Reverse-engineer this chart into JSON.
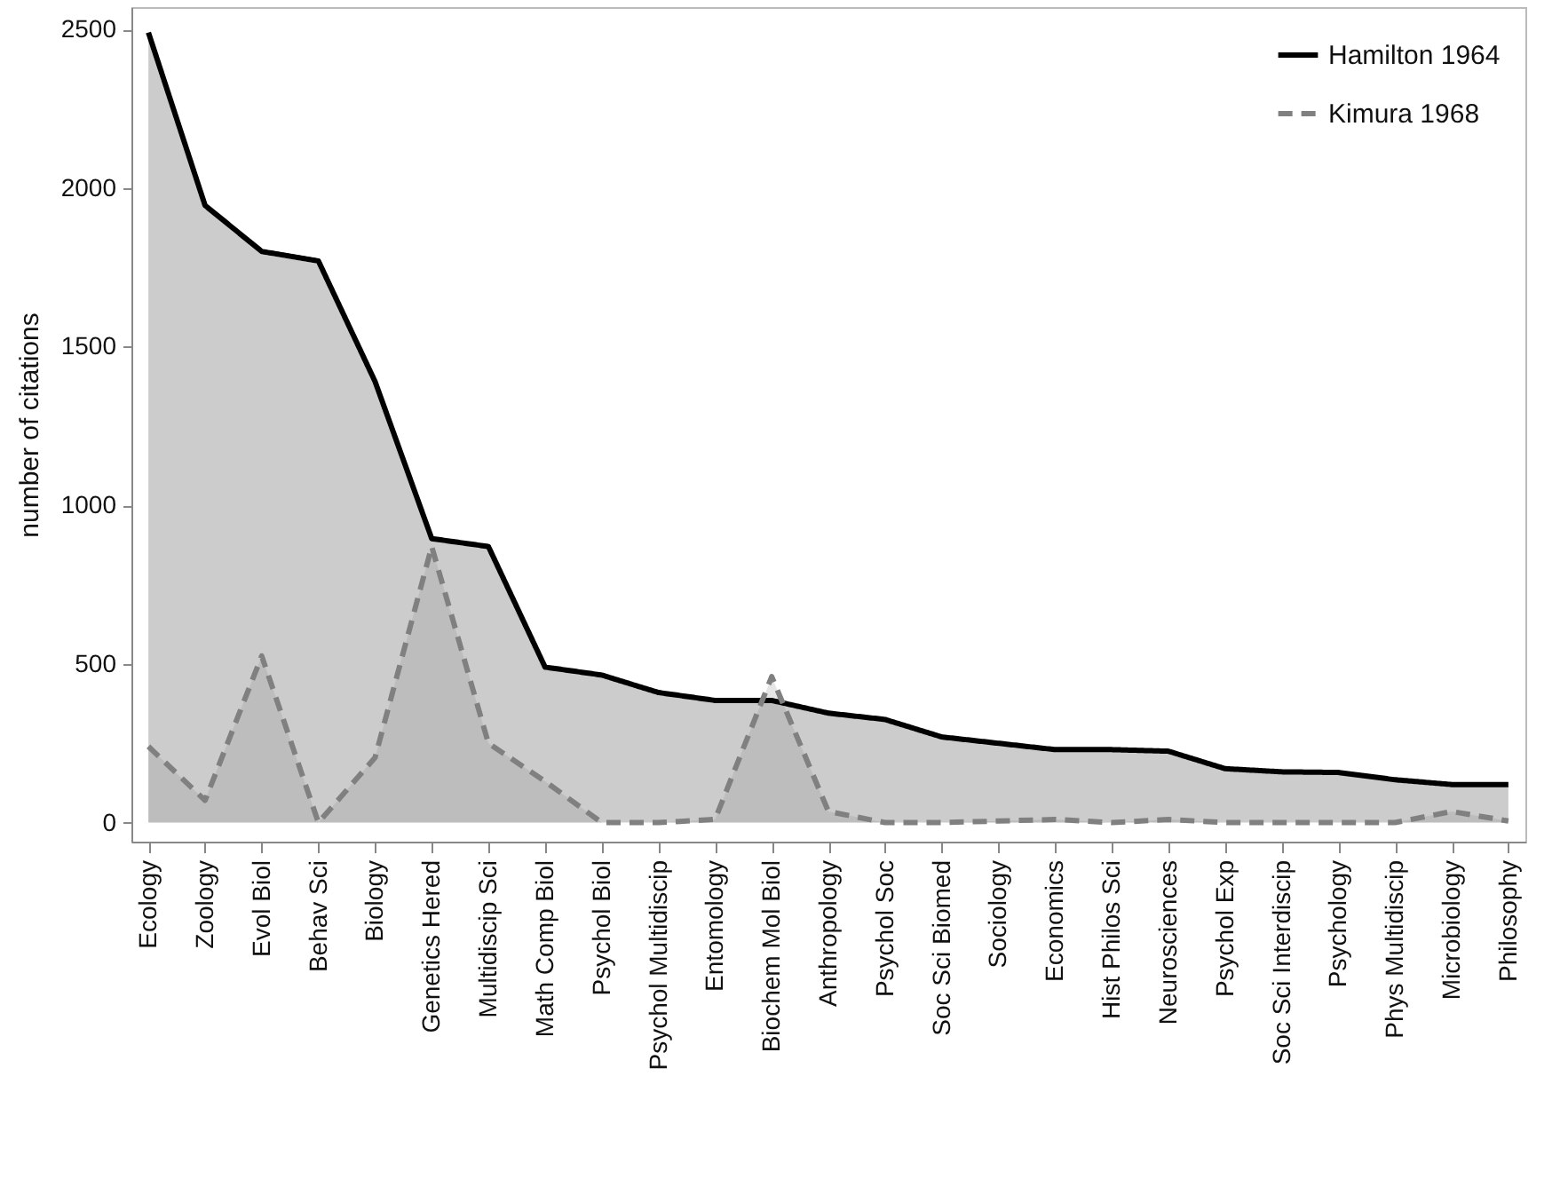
{
  "chart_data": {
    "type": "area",
    "ylabel": "number of citations",
    "categories": [
      "Ecology",
      "Zoology",
      "Evol Biol",
      "Behav Sci",
      "Biology",
      "Genetics Hered",
      "Multidiscip Sci",
      "Math Comp Biol",
      "Psychol Biol",
      "Psychol Multidiscip",
      "Entomology",
      "Biochem Mol Biol",
      "Anthropology",
      "Psychol Soc",
      "Soc Sci Biomed",
      "Sociology",
      "Economics",
      "Hist Philos Sci",
      "Neurosciences",
      "Psychol Exp",
      "Soc Sci Interdiscip",
      "Psychology",
      "Phys Multidiscip",
      "Microbiology",
      "Philosophy"
    ],
    "series": [
      {
        "name": "Hamilton 1964",
        "color": "#000000",
        "line_style": "solid",
        "values": [
          2490,
          1945,
          1800,
          1770,
          1390,
          895,
          870,
          490,
          465,
          410,
          385,
          385,
          345,
          325,
          270,
          250,
          230,
          230,
          225,
          170,
          160,
          158,
          135,
          120,
          120
        ]
      },
      {
        "name": "Kimura 1968",
        "color": "#808080",
        "line_style": "dashed",
        "values": [
          240,
          70,
          525,
          0,
          205,
          870,
          250,
          130,
          0,
          0,
          10,
          460,
          35,
          0,
          0,
          5,
          10,
          0,
          10,
          0,
          0,
          0,
          0,
          35,
          5
        ]
      }
    ],
    "ylim": [
      -60,
      2570
    ],
    "yticks": [
      0,
      500,
      1000,
      1500,
      2000,
      2500
    ],
    "legend": "top right"
  }
}
